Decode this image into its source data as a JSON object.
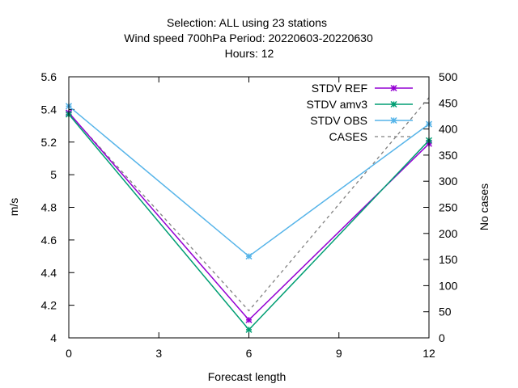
{
  "chart_data": {
    "type": "line",
    "title_lines": [
      "Selection: ALL using     23 stations",
      "Wind speed 700hPa   Period: 20220603-20220630",
      "Hours:  12"
    ],
    "xlabel": "Forecast length",
    "ylabel": "m/s",
    "y2label": "No cases",
    "x": [
      0,
      6,
      12
    ],
    "xlim": [
      0,
      12
    ],
    "ylim": [
      4.0,
      5.6
    ],
    "y2lim": [
      0,
      500
    ],
    "xticks": [
      "0",
      "3",
      "6",
      "9",
      "12"
    ],
    "yticks": [
      "4",
      "4.2",
      "4.4",
      "4.6",
      "4.8",
      "5",
      "5.2",
      "5.4",
      "5.6"
    ],
    "y2ticks": [
      "0",
      "50",
      "100",
      "150",
      "200",
      "250",
      "300",
      "350",
      "400",
      "450",
      "500"
    ],
    "legend_position": "top-right",
    "series": [
      {
        "name": "STDV REF",
        "axis": "y",
        "color": "#9400d3",
        "marker": "x-star",
        "values": [
          5.38,
          4.11,
          5.19
        ]
      },
      {
        "name": "STDV amv3",
        "axis": "y",
        "color": "#009e73",
        "marker": "x-star",
        "values": [
          5.37,
          4.05,
          5.21
        ]
      },
      {
        "name": "STDV OBS",
        "axis": "y",
        "color": "#56b4e9",
        "marker": "x-star",
        "values": [
          5.42,
          4.5,
          5.31
        ]
      },
      {
        "name": "CASES",
        "axis": "y2",
        "color": "#808080",
        "dashed": true,
        "values": [
          430,
          52,
          460
        ]
      }
    ]
  }
}
